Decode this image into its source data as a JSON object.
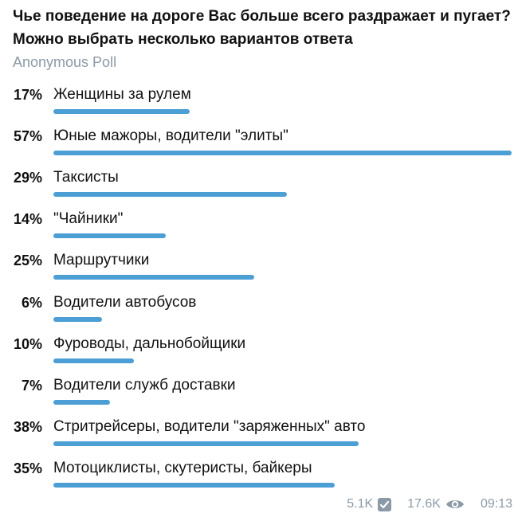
{
  "poll": {
    "question": "Чье поведение на дороге Вас больше всего раздражает и пугает? Можно выбрать несколько вариантов ответа",
    "type": "Anonymous Poll",
    "accent_color": "#4b9fd5",
    "options": [
      {
        "percent_label": "17%",
        "percent": 17,
        "label": "Женщины за рулем"
      },
      {
        "percent_label": "57%",
        "percent": 57,
        "label": "Юные мажоры, водители \"элиты\""
      },
      {
        "percent_label": "29%",
        "percent": 29,
        "label": "Таксисты"
      },
      {
        "percent_label": "14%",
        "percent": 14,
        "label": "\"Чайники\""
      },
      {
        "percent_label": "25%",
        "percent": 25,
        "label": "Маршрутчики"
      },
      {
        "percent_label": "6%",
        "percent": 6,
        "label": "Водители автобусов"
      },
      {
        "percent_label": "10%",
        "percent": 10,
        "label": "Фуроводы, дальнобойщики"
      },
      {
        "percent_label": "7%",
        "percent": 7,
        "label": "Водители служб доставки"
      },
      {
        "percent_label": "38%",
        "percent": 38,
        "label": "Стритрейсеры, водители \"заряженных\" авто"
      },
      {
        "percent_label": "35%",
        "percent": 35,
        "label": "Мотоциклисты, скутеристы, байкеры"
      }
    ]
  },
  "footer": {
    "votes": "5.1K",
    "votes_icon": "check-box-icon",
    "views": "17.6K",
    "views_icon": "eye-icon",
    "time": "09:13"
  }
}
